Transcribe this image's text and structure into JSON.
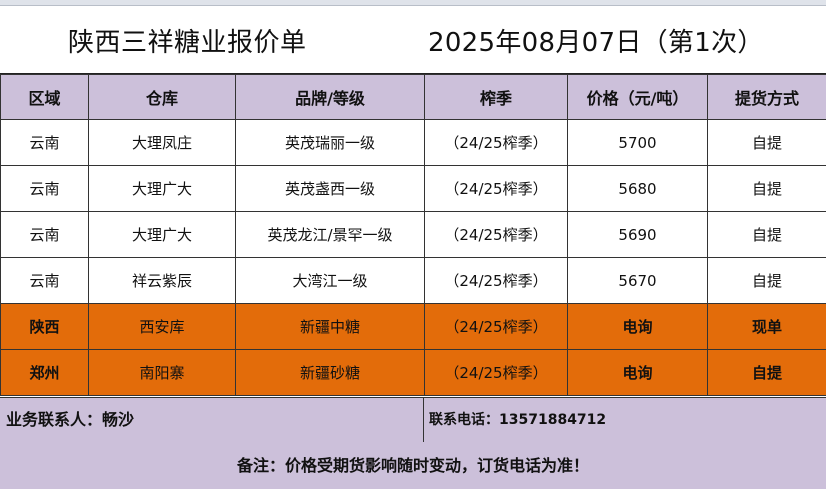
{
  "title": {
    "company": "陕西三祥糖业报价单",
    "date": "2025年08月07日（第1次）"
  },
  "table": {
    "headers": [
      "区域",
      "仓库",
      "品牌/等级",
      "榨季",
      "价格（元/吨）",
      "提货方式"
    ],
    "rows": [
      [
        "云南",
        "大理凤庄",
        "英茂瑞丽一级",
        "（24/25榨季）",
        "5700",
        "自提"
      ],
      [
        "云南",
        "大理广大",
        "英茂盏西一级",
        "（24/25榨季）",
        "5680",
        "自提"
      ],
      [
        "云南",
        "大理广大",
        "英茂龙江/景罕一级",
        "（24/25榨季）",
        "5690",
        "自提"
      ],
      [
        "云南",
        "祥云紫辰",
        "大湾江一级",
        "（24/25榨季）",
        "5670",
        "自提"
      ],
      [
        "陕西",
        "西安库",
        "新疆中糖",
        "（24/25榨季）",
        "电询",
        "现单"
      ],
      [
        "郑州",
        "南阳寨",
        "新疆砂糖",
        "（24/25榨季）",
        "电询",
        "自提"
      ]
    ]
  },
  "contact": {
    "person": "业务联系人：畅沙",
    "phone": "联系电话：13571884712"
  },
  "note": "备注：价格受期货影响随时变动，订货电话为准！",
  "colors": {
    "header_bg": "#ccc0da",
    "highlight_row_bg": "#e36c0a"
  }
}
